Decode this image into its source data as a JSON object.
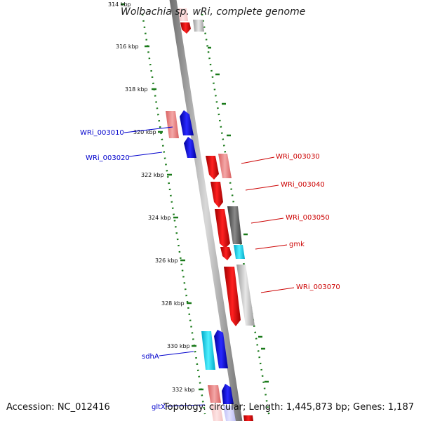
{
  "header": {
    "title": "Wolbachia sp. wRi, complete genome"
  },
  "footer": {
    "accession": "Accession: NC_012416",
    "summary": "Topology: circular; Length: 1,445,873 bp; Genes: 1,187"
  },
  "scale": {
    "unit": "kbp",
    "ticks": [
      "314 kbp",
      "316 kbp",
      "318 kbp",
      "320 kbp",
      "322 kbp",
      "324 kbp",
      "326 kbp",
      "328 kbp",
      "330 kbp",
      "332 kbp"
    ]
  },
  "genes": [
    {
      "label": "WRi_003010",
      "strand": "-"
    },
    {
      "label": "WRi_003020",
      "strand": "-"
    },
    {
      "label": "WRi_003030",
      "strand": "+"
    },
    {
      "label": "WRi_003040",
      "strand": "+"
    },
    {
      "label": "WRi_003050",
      "strand": "+"
    },
    {
      "label": "gmk",
      "strand": "+"
    },
    {
      "label": "WRi_003070",
      "strand": "+"
    },
    {
      "label": "sdhA",
      "strand": "-"
    },
    {
      "label": "gltX",
      "strand": "-"
    }
  ],
  "colors": {
    "minus_strand_label": "#0000cc",
    "plus_strand_label": "#cc0000",
    "minus_cds": "#0000e6",
    "plus_cds": "#ee0000",
    "rna_cds": "#00ccff",
    "tick_marks": "#1a7a1a",
    "backbone": "#8a8a8a"
  }
}
